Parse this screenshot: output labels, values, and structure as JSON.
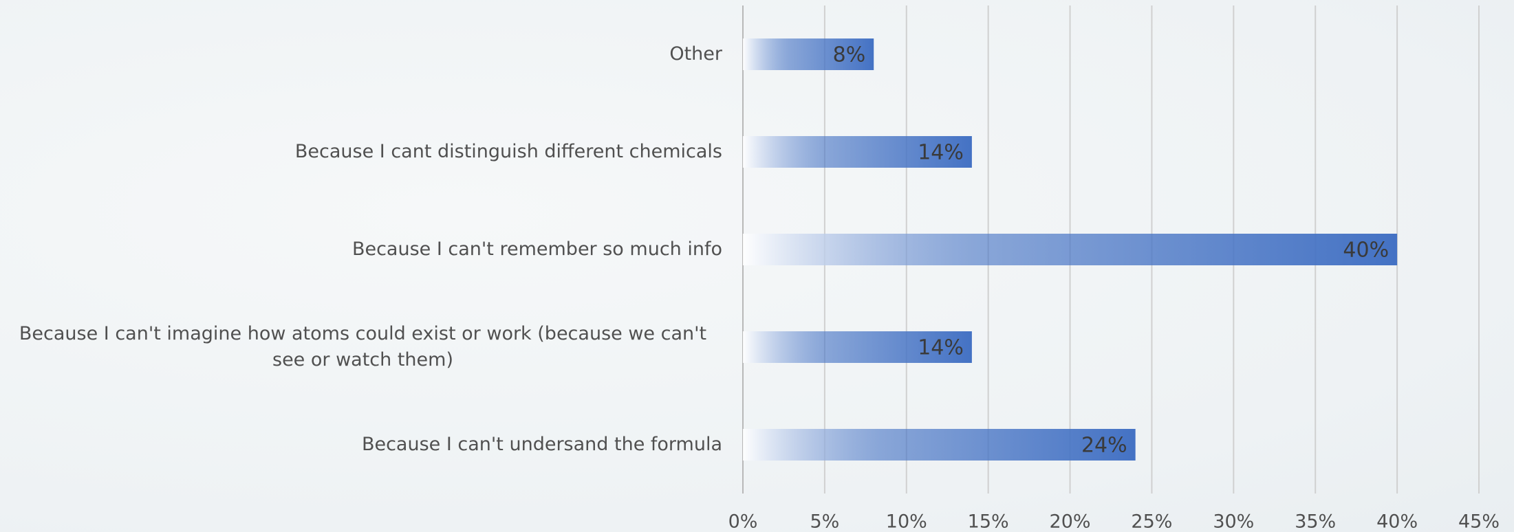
{
  "chart_data": {
    "type": "bar",
    "orientation": "horizontal",
    "categories": [
      "Other",
      "Because I cant distinguish different chemicals",
      "Because I can't remember so much info",
      "Because I can't imagine how atoms could exist or work (because we can't see or watch them)",
      "Because I can't undersand the formula"
    ],
    "values": [
      8,
      14,
      40,
      14,
      24
    ],
    "value_labels": [
      "8%",
      "14%",
      "40%",
      "14%",
      "24%"
    ],
    "color": "#4472c4",
    "xlim": [
      0,
      45
    ],
    "xticks": [
      {
        "value": 0,
        "label": "0%"
      },
      {
        "value": 5,
        "label": "5%"
      },
      {
        "value": 10,
        "label": "10%"
      },
      {
        "value": 15,
        "label": "15%"
      },
      {
        "value": 20,
        "label": "20%"
      },
      {
        "value": 25,
        "label": "25%"
      },
      {
        "value": 30,
        "label": "30%"
      },
      {
        "value": 35,
        "label": "35%"
      },
      {
        "value": 40,
        "label": "40%"
      },
      {
        "value": 45,
        "label": "45%"
      }
    ],
    "grid": true
  }
}
